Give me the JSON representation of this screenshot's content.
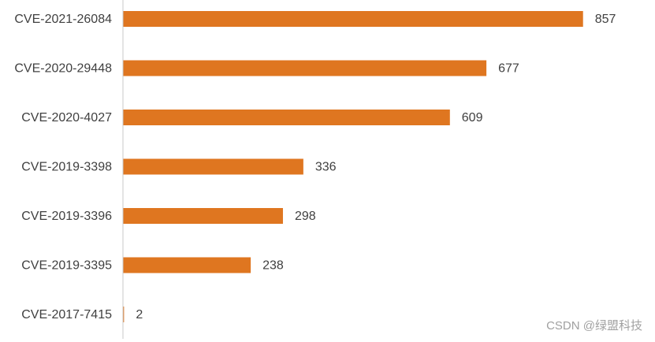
{
  "chart_data": {
    "type": "barh",
    "categories": [
      "CVE-2021-26084",
      "CVE-2020-29448",
      "CVE-2020-4027",
      "CVE-2019-3398",
      "CVE-2019-3396",
      "CVE-2019-3395",
      "CVE-2017-7415"
    ],
    "values": [
      857,
      677,
      609,
      336,
      298,
      238,
      2
    ],
    "color": "#df7620",
    "xlim": [
      0,
      900
    ],
    "watermark": "CSDN @绿盟科技"
  }
}
